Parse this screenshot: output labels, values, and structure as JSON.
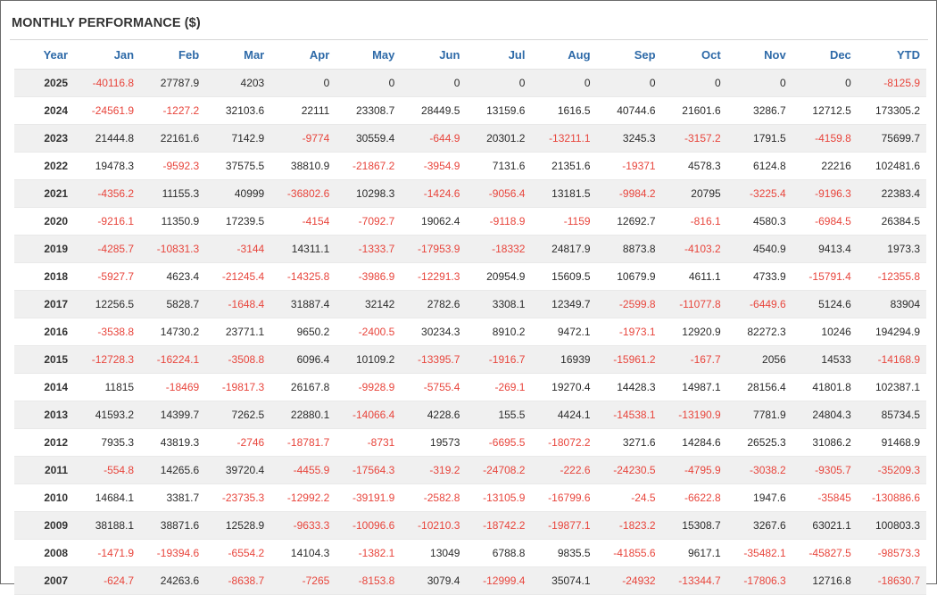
{
  "title": "MONTHLY PERFORMANCE ($)",
  "colors": {
    "header_text": "#2e6aa8",
    "negative": "#e8453c",
    "positive": "#2b2b2b",
    "row_stripe": "#f0f0f0"
  },
  "columns": [
    "Year",
    "Jan",
    "Feb",
    "Mar",
    "Apr",
    "May",
    "Jun",
    "Jul",
    "Aug",
    "Sep",
    "Oct",
    "Nov",
    "Dec",
    "YTD"
  ],
  "rows": [
    [
      "2025",
      "-40116.8",
      "27787.9",
      "4203",
      "0",
      "0",
      "0",
      "0",
      "0",
      "0",
      "0",
      "0",
      "0",
      "-8125.9"
    ],
    [
      "2024",
      "-24561.9",
      "-1227.2",
      "32103.6",
      "22111",
      "23308.7",
      "28449.5",
      "13159.6",
      "1616.5",
      "40744.6",
      "21601.6",
      "3286.7",
      "12712.5",
      "173305.2"
    ],
    [
      "2023",
      "21444.8",
      "22161.6",
      "7142.9",
      "-9774",
      "30559.4",
      "-644.9",
      "20301.2",
      "-13211.1",
      "3245.3",
      "-3157.2",
      "1791.5",
      "-4159.8",
      "75699.7"
    ],
    [
      "2022",
      "19478.3",
      "-9592.3",
      "37575.5",
      "38810.9",
      "-21867.2",
      "-3954.9",
      "7131.6",
      "21351.6",
      "-19371",
      "4578.3",
      "6124.8",
      "22216",
      "102481.6"
    ],
    [
      "2021",
      "-4356.2",
      "11155.3",
      "40999",
      "-36802.6",
      "10298.3",
      "-1424.6",
      "-9056.4",
      "13181.5",
      "-9984.2",
      "20795",
      "-3225.4",
      "-9196.3",
      "22383.4"
    ],
    [
      "2020",
      "-9216.1",
      "11350.9",
      "17239.5",
      "-4154",
      "-7092.7",
      "19062.4",
      "-9118.9",
      "-1159",
      "12692.7",
      "-816.1",
      "4580.3",
      "-6984.5",
      "26384.5"
    ],
    [
      "2019",
      "-4285.7",
      "-10831.3",
      "-3144",
      "14311.1",
      "-1333.7",
      "-17953.9",
      "-18332",
      "24817.9",
      "8873.8",
      "-4103.2",
      "4540.9",
      "9413.4",
      "1973.3"
    ],
    [
      "2018",
      "-5927.7",
      "4623.4",
      "-21245.4",
      "-14325.8",
      "-3986.9",
      "-12291.3",
      "20954.9",
      "15609.5",
      "10679.9",
      "4611.1",
      "4733.9",
      "-15791.4",
      "-12355.8"
    ],
    [
      "2017",
      "12256.5",
      "5828.7",
      "-1648.4",
      "31887.4",
      "32142",
      "2782.6",
      "3308.1",
      "12349.7",
      "-2599.8",
      "-11077.8",
      "-6449.6",
      "5124.6",
      "83904"
    ],
    [
      "2016",
      "-3538.8",
      "14730.2",
      "23771.1",
      "9650.2",
      "-2400.5",
      "30234.3",
      "8910.2",
      "9472.1",
      "-1973.1",
      "12920.9",
      "82272.3",
      "10246",
      "194294.9"
    ],
    [
      "2015",
      "-12728.3",
      "-16224.1",
      "-3508.8",
      "6096.4",
      "10109.2",
      "-13395.7",
      "-1916.7",
      "16939",
      "-15961.2",
      "-167.7",
      "2056",
      "14533",
      "-14168.9"
    ],
    [
      "2014",
      "11815",
      "-18469",
      "-19817.3",
      "26167.8",
      "-9928.9",
      "-5755.4",
      "-269.1",
      "19270.4",
      "14428.3",
      "14987.1",
      "28156.4",
      "41801.8",
      "102387.1"
    ],
    [
      "2013",
      "41593.2",
      "14399.7",
      "7262.5",
      "22880.1",
      "-14066.4",
      "4228.6",
      "155.5",
      "4424.1",
      "-14538.1",
      "-13190.9",
      "7781.9",
      "24804.3",
      "85734.5"
    ],
    [
      "2012",
      "7935.3",
      "43819.3",
      "-2746",
      "-18781.7",
      "-8731",
      "19573",
      "-6695.5",
      "-18072.2",
      "3271.6",
      "14284.6",
      "26525.3",
      "31086.2",
      "91468.9"
    ],
    [
      "2011",
      "-554.8",
      "14265.6",
      "39720.4",
      "-4455.9",
      "-17564.3",
      "-319.2",
      "-24708.2",
      "-222.6",
      "-24230.5",
      "-4795.9",
      "-3038.2",
      "-9305.7",
      "-35209.3"
    ],
    [
      "2010",
      "14684.1",
      "3381.7",
      "-23735.3",
      "-12992.2",
      "-39191.9",
      "-2582.8",
      "-13105.9",
      "-16799.6",
      "-24.5",
      "-6622.8",
      "1947.6",
      "-35845",
      "-130886.6"
    ],
    [
      "2009",
      "38188.1",
      "38871.6",
      "12528.9",
      "-9633.3",
      "-10096.6",
      "-10210.3",
      "-18742.2",
      "-19877.1",
      "-1823.2",
      "15308.7",
      "3267.6",
      "63021.1",
      "100803.3"
    ],
    [
      "2008",
      "-1471.9",
      "-19394.6",
      "-6554.2",
      "14104.3",
      "-1382.1",
      "13049",
      "6788.8",
      "9835.5",
      "-41855.6",
      "9617.1",
      "-35482.1",
      "-45827.5",
      "-98573.3"
    ],
    [
      "2007",
      "-624.7",
      "24263.6",
      "-8638.7",
      "-7265",
      "-8153.8",
      "3079.4",
      "-12999.4",
      "35074.1",
      "-24932",
      "-13344.7",
      "-17806.3",
      "12716.8",
      "-18630.7"
    ]
  ]
}
